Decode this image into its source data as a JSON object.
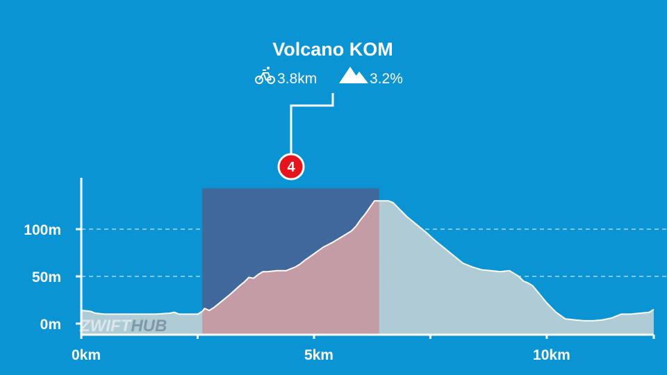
{
  "segment": {
    "name": "Volcano KOM",
    "distance": "3.8km",
    "gradient": "3.2%",
    "badge": "4",
    "icons": [
      "bicycle-icon",
      "mountain-icon"
    ]
  },
  "watermark": {
    "part1": "ZWIFT",
    "part2": "HUB"
  },
  "colors": {
    "background": "#0a94d3",
    "profile_fill": "#afcbd6",
    "segment_fill": "#c49ca6",
    "segment_box": "#41689a",
    "badge": "#e8141d",
    "axis": "#ffffff"
  },
  "chart_data": {
    "type": "area",
    "xunit": "km",
    "yunit": "m",
    "xlim": [
      0,
      12.3
    ],
    "ylim": [
      -10,
      150
    ],
    "x_ticks": [
      0,
      2.5,
      5,
      7.5,
      10,
      12.3
    ],
    "x_tick_labels": [
      {
        "value": 0,
        "label": "0km"
      },
      {
        "value": 5,
        "label": "5km"
      },
      {
        "value": 10,
        "label": "10km"
      }
    ],
    "y_tick_labels": [
      {
        "value": 0,
        "label": "0m"
      },
      {
        "value": 50,
        "label": "50m"
      },
      {
        "value": 100,
        "label": "100m"
      }
    ],
    "grid": "horizontal dashed",
    "highlight": {
      "x_start": 2.6,
      "x_end": 6.4
    },
    "series": [
      {
        "x": [
          0,
          0.2,
          0.3,
          0.5,
          0.8,
          1.0,
          1.3,
          1.6,
          1.9,
          2.0,
          2.1,
          2.2,
          2.3,
          2.5,
          2.6,
          2.65,
          2.75,
          2.85,
          3.0,
          3.2,
          3.4,
          3.5,
          3.6,
          3.7,
          3.8,
          3.9,
          4.0,
          4.2,
          4.4,
          4.5,
          4.6,
          4.7,
          4.8,
          5.0,
          5.2,
          5.4,
          5.6,
          5.8,
          5.9,
          6.0,
          6.1,
          6.2,
          6.3,
          6.4,
          6.5,
          6.6,
          6.7,
          6.8,
          6.9,
          7.0,
          7.2,
          7.4,
          7.6,
          7.8,
          8.0,
          8.2,
          8.4,
          8.6,
          8.8,
          9.0,
          9.2,
          9.4,
          9.5,
          9.6,
          9.7,
          9.8,
          10.0,
          10.2,
          10.4,
          10.6,
          10.8,
          11.0,
          11.2,
          11.4,
          11.6,
          11.8,
          12.0,
          12.2,
          12.3
        ],
        "y": [
          14,
          13,
          11,
          10,
          10,
          10,
          10,
          10,
          11,
          12,
          10,
          10,
          10,
          10,
          13,
          16,
          14,
          17,
          23,
          31,
          40,
          44,
          49,
          48,
          52,
          55,
          55,
          56,
          56,
          58,
          60,
          63,
          67,
          74,
          81,
          86,
          92,
          98,
          103,
          110,
          116,
          123,
          130,
          130,
          130,
          130,
          128,
          123,
          118,
          113,
          105,
          97,
          88,
          80,
          72,
          64,
          60,
          57,
          56,
          55,
          56,
          50,
          45,
          43,
          40,
          34,
          22,
          12,
          5,
          4,
          3,
          3,
          4,
          6,
          10,
          10,
          11,
          12,
          15
        ]
      }
    ]
  }
}
